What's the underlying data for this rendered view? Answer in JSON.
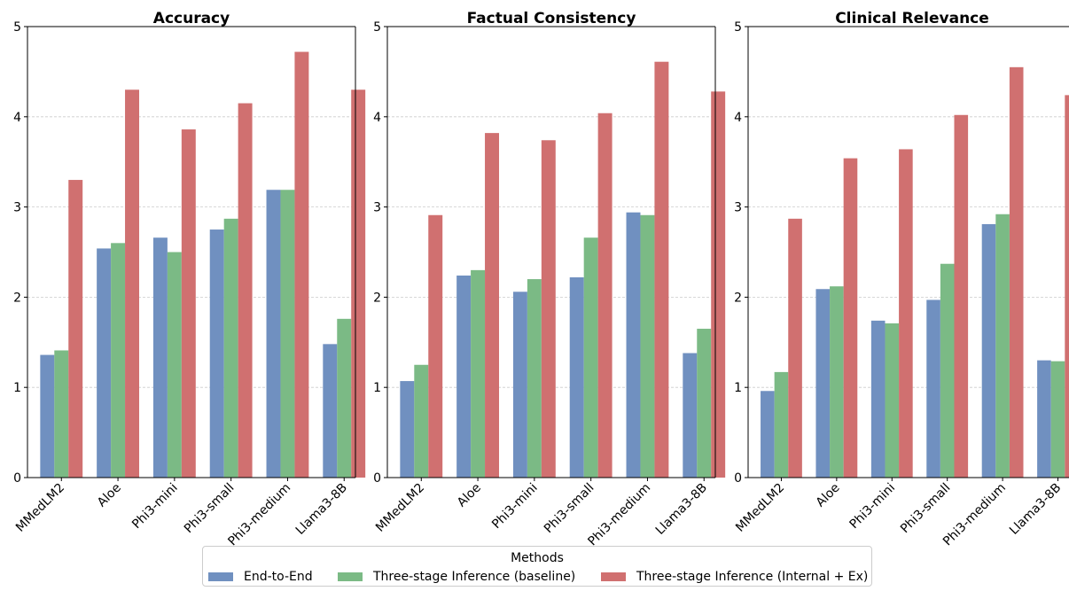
{
  "colors": {
    "end_to_end": "#7090c0",
    "baseline": "#7bba85",
    "internal_ex": "#d07070",
    "grid": "#cccccc",
    "axis": "#000000"
  },
  "legend": {
    "title": "Methods",
    "items": [
      {
        "label": "End-to-End",
        "color": "#7090c0"
      },
      {
        "label": "Three-stage Inference (baseline)",
        "color": "#7bba85"
      },
      {
        "label": "Three-stage Inference (Internal + Ex)",
        "color": "#d07070"
      }
    ],
    "placement": "bottom-center"
  },
  "chart_data": [
    {
      "type": "bar",
      "title": "Accuracy",
      "categories": [
        "MMedLM2",
        "Aloe",
        "Phi3-mini",
        "Phi3-small",
        "Phi3-medium",
        "Llama3-8B"
      ],
      "series": [
        {
          "name": "End-to-End",
          "values": [
            1.36,
            2.54,
            2.66,
            2.75,
            3.19,
            1.48
          ]
        },
        {
          "name": "Three-stage Inference (baseline)",
          "values": [
            1.41,
            2.6,
            2.5,
            2.87,
            3.19,
            1.76
          ]
        },
        {
          "name": "Three-stage Inference (Internal + Ex)",
          "values": [
            3.3,
            4.3,
            3.86,
            4.15,
            4.72,
            4.3
          ]
        }
      ],
      "ylim": [
        0,
        5
      ],
      "yticks": [
        0,
        1,
        2,
        3,
        4,
        5
      ],
      "grid": true
    },
    {
      "type": "bar",
      "title": "Factual Consistency",
      "categories": [
        "MMedLM2",
        "Aloe",
        "Phi3-mini",
        "Phi3-small",
        "Phi3-medium",
        "Llama3-8B"
      ],
      "series": [
        {
          "name": "End-to-End",
          "values": [
            1.07,
            2.24,
            2.06,
            2.22,
            2.94,
            1.38
          ]
        },
        {
          "name": "Three-stage Inference (baseline)",
          "values": [
            1.25,
            2.3,
            2.2,
            2.66,
            2.91,
            1.65
          ]
        },
        {
          "name": "Three-stage Inference (Internal + Ex)",
          "values": [
            2.91,
            3.82,
            3.74,
            4.04,
            4.61,
            4.28
          ]
        }
      ],
      "ylim": [
        0,
        5
      ],
      "yticks": [
        0,
        1,
        2,
        3,
        4,
        5
      ],
      "grid": true
    },
    {
      "type": "bar",
      "title": "Clinical Relevance",
      "categories": [
        "MMedLM2",
        "Aloe",
        "Phi3-mini",
        "Phi3-small",
        "Phi3-medium",
        "Llama3-8B"
      ],
      "series": [
        {
          "name": "End-to-End",
          "values": [
            0.96,
            2.09,
            1.74,
            1.97,
            2.81,
            1.3
          ]
        },
        {
          "name": "Three-stage Inference (baseline)",
          "values": [
            1.17,
            2.12,
            1.71,
            2.37,
            2.92,
            1.29
          ]
        },
        {
          "name": "Three-stage Inference (Internal + Ex)",
          "values": [
            2.87,
            3.54,
            3.64,
            4.02,
            4.55,
            4.24
          ]
        }
      ],
      "ylim": [
        0,
        5
      ],
      "yticks": [
        0,
        1,
        2,
        3,
        4,
        5
      ],
      "grid": true
    }
  ]
}
